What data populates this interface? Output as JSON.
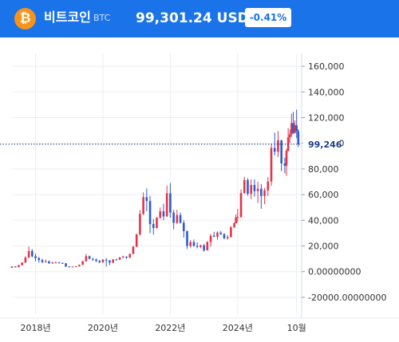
{
  "header": {
    "coin_icon": "bitcoin-icon",
    "coin_icon_glyph": "₿",
    "coin_name": "비트코인",
    "coin_symbol": "BTC",
    "price": "99,301.24 USDT",
    "change": "-0.41%"
  },
  "colors": {
    "header_bg": "#1a73e8",
    "bitcoin_orange": "#f7931a",
    "candle_up": "#e3344a",
    "candle_down": "#2f5bd1",
    "price_line": "#1d3f88"
  },
  "chart_data": {
    "type": "candlestick",
    "title": "",
    "xlabel": "",
    "ylabel": "",
    "ylim": [
      -30000,
      170000
    ],
    "y_ticks": [
      {
        "value": 160000,
        "label": "160,000"
      },
      {
        "value": 140000,
        "label": "140,000"
      },
      {
        "value": 120000,
        "label": "120,000"
      },
      {
        "value": 100000,
        "label": "100,000"
      },
      {
        "value": 80000,
        "label": "80,000"
      },
      {
        "value": 60000,
        "label": "60,000"
      },
      {
        "value": 40000,
        "label": "40,000"
      },
      {
        "value": 20000,
        "label": "20,000"
      },
      {
        "value": 0,
        "label": "0.00000000"
      },
      {
        "value": -20000,
        "label": "-20000.00000000"
      }
    ],
    "x_range": [
      2017.3,
      2025.9
    ],
    "x_ticks": [
      {
        "value": 2018.0,
        "label": "2018년"
      },
      {
        "value": 2020.0,
        "label": "2020년"
      },
      {
        "value": 2022.0,
        "label": "2022년"
      },
      {
        "value": 2024.0,
        "label": "2024년"
      },
      {
        "value": 2025.75,
        "label": "10월"
      }
    ],
    "vertical_grid": [
      2018.0,
      2020.0,
      2022.0,
      2024.0,
      2025.75
    ],
    "current_price": {
      "value": 99246,
      "label": "99,246"
    },
    "grid": true,
    "candles": [
      [
        2017.3,
        3000,
        4000,
        2900,
        4200
      ],
      [
        2017.4,
        4000,
        3500,
        3300,
        4300
      ],
      [
        2017.5,
        3500,
        5000,
        3400,
        5200
      ],
      [
        2017.6,
        5000,
        7000,
        4800,
        7300
      ],
      [
        2017.7,
        7000,
        11000,
        6800,
        12000
      ],
      [
        2017.8,
        11000,
        16000,
        10500,
        19500
      ],
      [
        2017.9,
        16000,
        12000,
        11000,
        17500
      ],
      [
        2018.0,
        12000,
        10500,
        8000,
        14000
      ],
      [
        2018.1,
        10500,
        9000,
        7000,
        11500
      ],
      [
        2018.2,
        9000,
        7500,
        6500,
        10000
      ],
      [
        2018.3,
        7500,
        8000,
        7000,
        9500
      ],
      [
        2018.4,
        8000,
        6500,
        6000,
        8500
      ],
      [
        2018.5,
        6500,
        7000,
        6200,
        7800
      ],
      [
        2018.6,
        7000,
        7200,
        6300,
        7600
      ],
      [
        2018.7,
        7200,
        6800,
        6300,
        7500
      ],
      [
        2018.8,
        6800,
        6500,
        6100,
        7100
      ],
      [
        2018.9,
        6500,
        4000,
        3600,
        6700
      ],
      [
        2019.0,
        4000,
        3700,
        3300,
        4200
      ],
      [
        2019.1,
        3700,
        3900,
        3500,
        4100
      ],
      [
        2019.2,
        3900,
        4100,
        3700,
        4300
      ],
      [
        2019.3,
        4100,
        5300,
        4000,
        5500
      ],
      [
        2019.4,
        5300,
        8000,
        5200,
        8500
      ],
      [
        2019.5,
        8000,
        12000,
        7800,
        13800
      ],
      [
        2019.6,
        12000,
        10000,
        9500,
        12500
      ],
      [
        2019.7,
        10000,
        9500,
        8500,
        10800
      ],
      [
        2019.8,
        9500,
        8300,
        7500,
        10200
      ],
      [
        2019.9,
        8300,
        7200,
        6600,
        9000
      ],
      [
        2020.0,
        7200,
        9300,
        6900,
        9800
      ],
      [
        2020.1,
        9300,
        8600,
        4000,
        10500
      ],
      [
        2020.2,
        8600,
        7000,
        5000,
        9000
      ],
      [
        2020.3,
        7000,
        9400,
        6500,
        9900
      ],
      [
        2020.4,
        9400,
        9300,
        8700,
        10000
      ],
      [
        2020.5,
        9300,
        11000,
        9000,
        11500
      ],
      [
        2020.6,
        11000,
        11600,
        10500,
        12400
      ],
      [
        2020.7,
        11600,
        10800,
        10000,
        12000
      ],
      [
        2020.8,
        10800,
        13800,
        10700,
        14000
      ],
      [
        2020.9,
        13800,
        19500,
        13500,
        19900
      ],
      [
        2021.0,
        19500,
        29000,
        19000,
        29500
      ],
      [
        2021.1,
        29000,
        45000,
        28000,
        48000
      ],
      [
        2021.2,
        45000,
        58000,
        44000,
        61700
      ],
      [
        2021.3,
        58000,
        55000,
        47000,
        64800
      ],
      [
        2021.4,
        55000,
        37000,
        30000,
        59000
      ],
      [
        2021.5,
        37000,
        34000,
        28800,
        41000
      ],
      [
        2021.6,
        34000,
        42000,
        33500,
        42500
      ],
      [
        2021.7,
        42000,
        47000,
        41000,
        50000
      ],
      [
        2021.8,
        47000,
        43000,
        40000,
        52900
      ],
      [
        2021.9,
        43000,
        61000,
        42800,
        67000
      ],
      [
        2022.0,
        61000,
        46000,
        42000,
        69000
      ],
      [
        2022.1,
        46000,
        38000,
        33000,
        48000
      ],
      [
        2022.2,
        38000,
        44000,
        37000,
        48200
      ],
      [
        2022.3,
        44000,
        38000,
        37500,
        46000
      ],
      [
        2022.4,
        38000,
        31500,
        26500,
        40000
      ],
      [
        2022.5,
        31500,
        20000,
        17600,
        32000
      ],
      [
        2022.6,
        20000,
        23000,
        18800,
        24500
      ],
      [
        2022.7,
        23000,
        20000,
        19500,
        25000
      ],
      [
        2022.8,
        20000,
        19300,
        18100,
        22800
      ],
      [
        2022.9,
        19300,
        20500,
        18200,
        21000
      ],
      [
        2023.0,
        20500,
        16500,
        15500,
        21500
      ],
      [
        2023.1,
        16500,
        23000,
        16500,
        23800
      ],
      [
        2023.2,
        23000,
        28000,
        19500,
        29200
      ],
      [
        2023.3,
        28000,
        27200,
        26800,
        31000
      ],
      [
        2023.4,
        27200,
        30400,
        24800,
        31400
      ],
      [
        2023.5,
        30400,
        29200,
        28600,
        31800
      ],
      [
        2023.6,
        29200,
        26000,
        25200,
        30000
      ],
      [
        2023.7,
        26000,
        27000,
        24900,
        28500
      ],
      [
        2023.8,
        27000,
        34500,
        26500,
        35500
      ],
      [
        2023.9,
        34500,
        37700,
        34000,
        38400
      ],
      [
        2023.95,
        37700,
        42300,
        37600,
        44700
      ],
      [
        2024.0,
        42300,
        42600,
        38500,
        48900
      ],
      [
        2024.1,
        42600,
        61200,
        41900,
        64000
      ],
      [
        2024.2,
        61200,
        71300,
        60800,
        73800
      ],
      [
        2024.3,
        71300,
        60600,
        59100,
        72800
      ],
      [
        2024.4,
        60600,
        67500,
        56500,
        71900
      ],
      [
        2024.5,
        67500,
        62700,
        58400,
        71900
      ],
      [
        2024.6,
        62700,
        64600,
        53500,
        70000
      ],
      [
        2024.7,
        64600,
        58900,
        49000,
        68200
      ],
      [
        2024.8,
        58900,
        63300,
        52500,
        65200
      ],
      [
        2024.9,
        63300,
        70200,
        58900,
        73600
      ],
      [
        2025.0,
        70200,
        96400,
        66800,
        99800
      ],
      [
        2025.1,
        96400,
        93400,
        90500,
        108300
      ],
      [
        2025.2,
        93400,
        102400,
        89200,
        109600
      ],
      [
        2025.3,
        102400,
        84300,
        78200,
        102500
      ],
      [
        2025.4,
        84300,
        82500,
        76600,
        88800
      ],
      [
        2025.45,
        82500,
        94200,
        74500,
        95800
      ],
      [
        2025.5,
        94200,
        104600,
        93400,
        111900
      ],
      [
        2025.55,
        104600,
        107100,
        100400,
        110700
      ],
      [
        2025.6,
        107100,
        115700,
        105000,
        123000
      ],
      [
        2025.65,
        115700,
        108200,
        107000,
        124500
      ],
      [
        2025.7,
        108200,
        114000,
        107400,
        117900
      ],
      [
        2025.75,
        114000,
        109500,
        104000,
        126200
      ],
      [
        2025.8,
        109500,
        99300,
        97000,
        111000
      ]
    ]
  }
}
